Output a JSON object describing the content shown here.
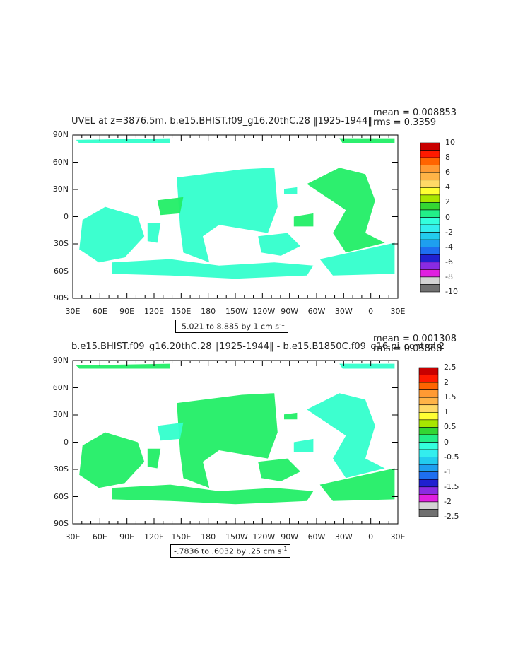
{
  "panels": [
    {
      "title": "UVEL at z=3876.5m, b.e15.BHIST.f09_g16.20thC.28 ‖1925-1944‖",
      "mean": "mean = 0.008853",
      "rms": "rms = 0.3359",
      "range_text": "-5.021 to 8.885 by 1 cm s",
      "range_sup": "-1",
      "lat_labels": [
        "90N",
        "60N",
        "30N",
        "0",
        "30S",
        "60S",
        "90S"
      ],
      "lon_labels": [
        "30E",
        "60E",
        "90E",
        "120E",
        "150E",
        "180",
        "150W",
        "120W",
        "90W",
        "60W",
        "30W",
        "0",
        "30E"
      ],
      "colorbar_labels": [
        "10",
        "8",
        "6",
        "4",
        "2",
        "0",
        "-2",
        "-4",
        "-6",
        "-8",
        "-10"
      ],
      "colorbar_colors": [
        "#c80000",
        "#ff1a00",
        "#ff6400",
        "#ff9a33",
        "#ffb347",
        "#ffd966",
        "#ffff33",
        "#a8e600",
        "#33d633",
        "#22ee88",
        "#33ffdd",
        "#33eeee",
        "#22ccee",
        "#1e9fef",
        "#1e6ef0",
        "#2020d0",
        "#8a2be2",
        "#e020e0",
        "#d3d3d3",
        "#707070"
      ],
      "field_color": "#33ffcc",
      "accent_color": "#22ee66"
    },
    {
      "title": "b.e15.BHIST.f09_g16.20thC.28 ‖1925-1944‖ - b.e15.B1850C.f09_g16.pi_control.2",
      "mean": "mean = 0.001308",
      "rms": "rms = 0.03868",
      "range_text": "-.7836 to .6032 by .25 cm s",
      "range_sup": "-1",
      "lat_labels": [
        "90N",
        "60N",
        "30N",
        "0",
        "30S",
        "60S",
        "90S"
      ],
      "lon_labels": [
        "30E",
        "60E",
        "90E",
        "120E",
        "150E",
        "180",
        "150W",
        "120W",
        "90W",
        "60W",
        "30W",
        "0",
        "30E"
      ],
      "colorbar_labels": [
        "2.5",
        "2",
        "1.5",
        "1",
        "0.5",
        "0",
        "-0.5",
        "-1",
        "-1.5",
        "-2",
        "-2.5"
      ],
      "colorbar_colors": [
        "#c80000",
        "#ff1a00",
        "#ff6400",
        "#ff9a33",
        "#ffb347",
        "#ffd966",
        "#ffff33",
        "#a8e600",
        "#33d633",
        "#22ee88",
        "#33ffdd",
        "#33eeee",
        "#22ccee",
        "#1e9fef",
        "#1e6ef0",
        "#2020d0",
        "#8a2be2",
        "#e020e0",
        "#d3d3d3",
        "#707070"
      ],
      "field_color": "#22ee66",
      "accent_color": "#33ffcc"
    }
  ]
}
